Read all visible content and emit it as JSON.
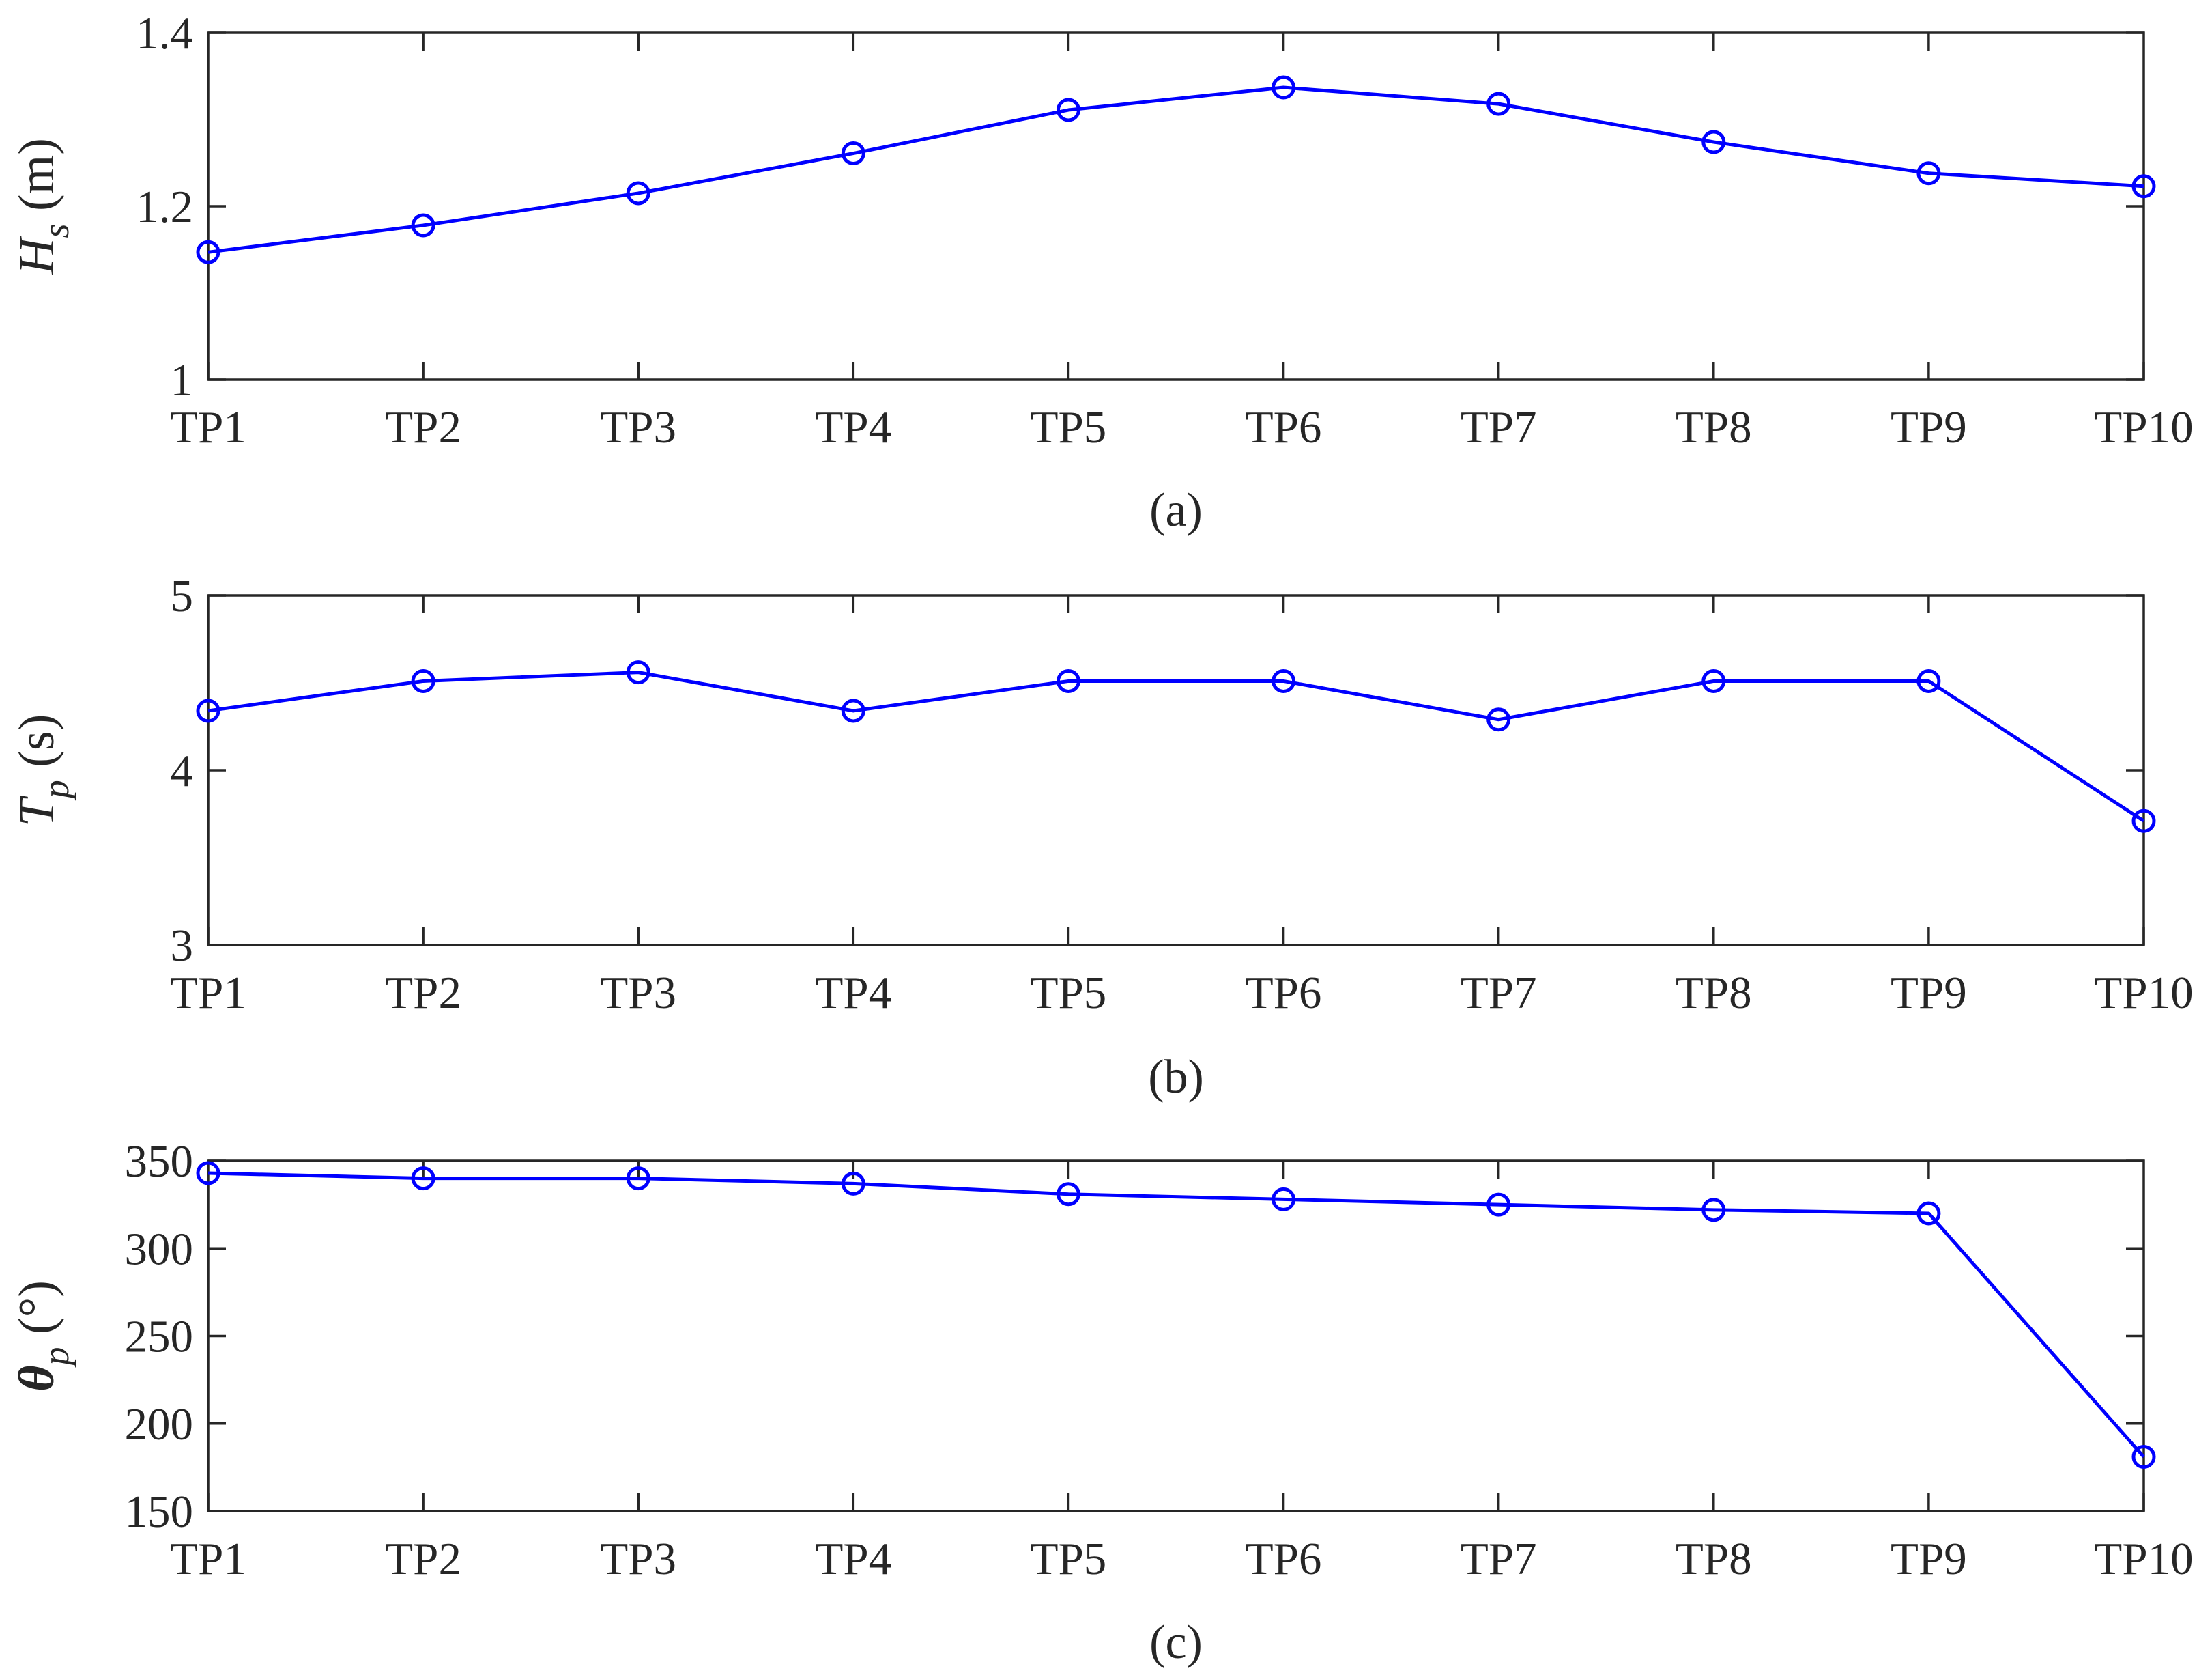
{
  "figure": {
    "series_color": "#0000ff",
    "frame_color": "#262626"
  },
  "chart_data": [
    {
      "type": "line",
      "panel_label": "(a)",
      "ylabel": {
        "symbol": "H",
        "subscript": "s",
        "unit": " (m)"
      },
      "categories": [
        "TP1",
        "TP2",
        "TP3",
        "TP4",
        "TP5",
        "TP6",
        "TP7",
        "TP8",
        "TP9",
        "TP10"
      ],
      "values": [
        1.147,
        1.178,
        1.215,
        1.261,
        1.311,
        1.337,
        1.318,
        1.274,
        1.238,
        1.223
      ],
      "ylim": [
        1,
        1.4
      ],
      "yticks": [
        1,
        1.2,
        1.4
      ],
      "ytick_labels": [
        "1",
        "1.2",
        "1.4"
      ],
      "grid": false,
      "marker": "circle"
    },
    {
      "type": "line",
      "panel_label": "(b)",
      "ylabel": {
        "symbol": "T",
        "subscript": "p",
        "unit": " (s)"
      },
      "categories": [
        "TP1",
        "TP2",
        "TP3",
        "TP4",
        "TP5",
        "TP6",
        "TP7",
        "TP8",
        "TP9",
        "TP10"
      ],
      "values": [
        4.34,
        4.51,
        4.56,
        4.34,
        4.51,
        4.51,
        4.29,
        4.51,
        4.51,
        3.71
      ],
      "ylim": [
        3,
        5
      ],
      "yticks": [
        3,
        4,
        5
      ],
      "ytick_labels": [
        "3",
        "4",
        "5"
      ],
      "grid": false,
      "marker": "circle"
    },
    {
      "type": "line",
      "panel_label": "(c)",
      "ylabel": {
        "symbol": "θ",
        "subscript": "p",
        "unit": " (°)"
      },
      "categories": [
        "TP1",
        "TP2",
        "TP3",
        "TP4",
        "TP5",
        "TP6",
        "TP7",
        "TP8",
        "TP9",
        "TP10"
      ],
      "values": [
        343,
        340,
        340,
        337,
        331,
        328,
        325,
        322,
        320,
        181
      ],
      "ylim": [
        150,
        350
      ],
      "yticks": [
        150,
        200,
        250,
        300,
        350
      ],
      "ytick_labels": [
        "150",
        "200",
        "250",
        "300",
        "350"
      ],
      "grid": false,
      "marker": "circle"
    }
  ]
}
